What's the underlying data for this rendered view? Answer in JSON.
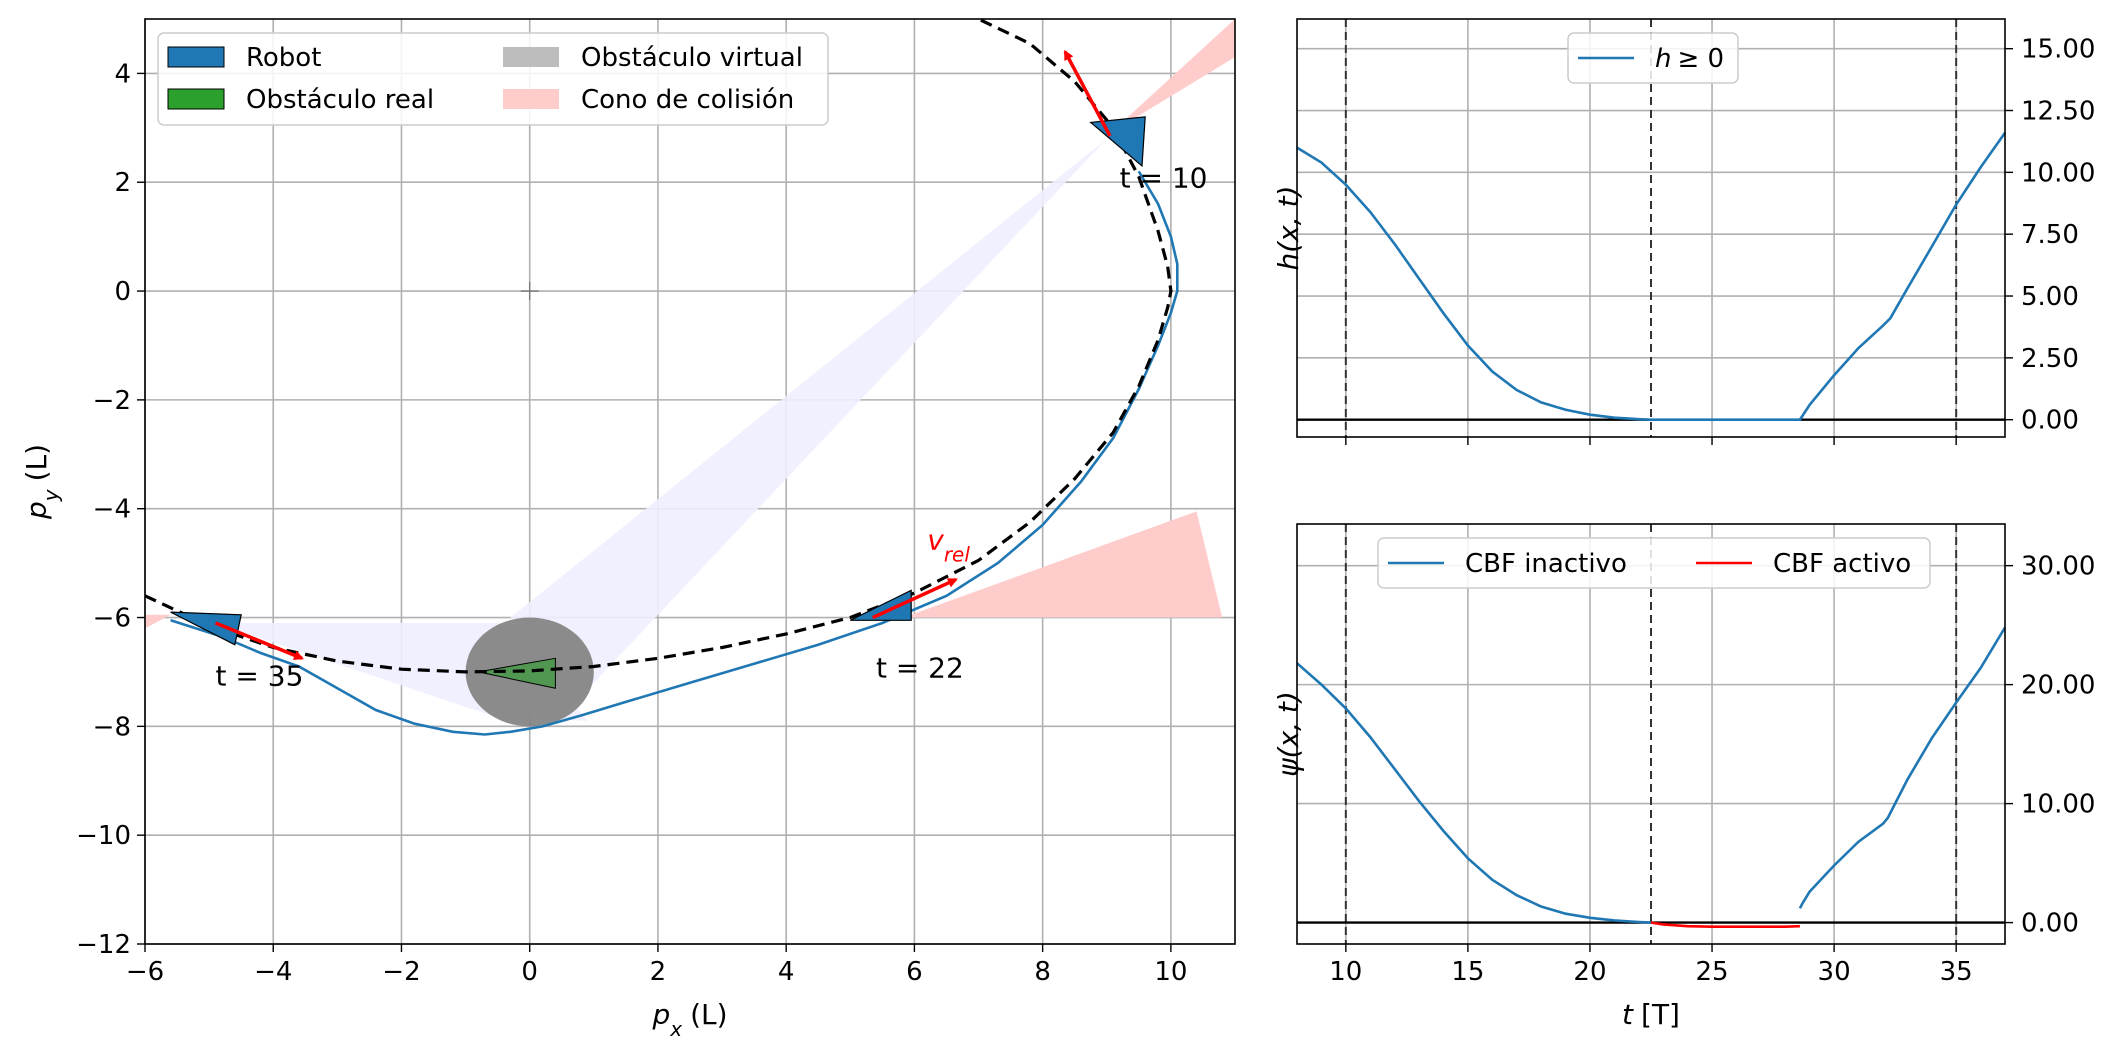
{
  "chart_data": [
    {
      "type": "line",
      "title": "",
      "xlabel_main": "p",
      "xlabel_sub": "x",
      "xlabel_unit": "(L)",
      "ylabel_main": "p",
      "ylabel_sub": "y",
      "ylabel_unit": "(L)",
      "xlim": [
        -6,
        11
      ],
      "ylim": [
        -12,
        5
      ],
      "xticks": [
        -6,
        -4,
        -2,
        0,
        2,
        4,
        6,
        8,
        10
      ],
      "yticks": [
        -12,
        -10,
        -8,
        -6,
        -4,
        -2,
        0,
        2,
        4
      ],
      "grid": true,
      "legend": {
        "placement": "upper-left",
        "entries": [
          {
            "label": "Robot",
            "color": "#1f77b4"
          },
          {
            "label": "Obstáculo virtual",
            "color": "#bdbdbd"
          },
          {
            "label": "Obstáculo real",
            "color": "#2ca02c"
          },
          {
            "label": "Cono de colisión",
            "color": "#ffcccc"
          }
        ]
      },
      "series": [
        {
          "label": "robot trajectory",
          "color": "#1f77b4",
          "style": "solid",
          "x": [
            -5.6,
            -4.8,
            -4.2,
            -3.6,
            -3.0,
            -2.4,
            -1.8,
            -1.2,
            -0.7,
            -0.3,
            0.2,
            0.8,
            1.5,
            2.5,
            3.5,
            4.5,
            5.5,
            6.5,
            7.3,
            8.0,
            8.6,
            9.1,
            9.5,
            9.8,
            10.0,
            10.1,
            10.1,
            10.0,
            9.8,
            9.5
          ],
          "y": [
            -6.05,
            -6.35,
            -6.65,
            -6.9,
            -7.3,
            -7.7,
            -7.95,
            -8.1,
            -8.15,
            -8.1,
            -8.0,
            -7.8,
            -7.55,
            -7.2,
            -6.85,
            -6.5,
            -6.1,
            -5.6,
            -5.0,
            -4.3,
            -3.5,
            -2.7,
            -1.8,
            -1.0,
            -0.4,
            0.0,
            0.5,
            1.0,
            1.6,
            2.2
          ]
        },
        {
          "label": "reference path",
          "color": "#000000",
          "style": "dashed",
          "x": [
            -6.0,
            -5.0,
            -4.0,
            -3.0,
            -2.0,
            -1.0,
            0.0,
            1.0,
            2.0,
            3.0,
            4.0,
            5.0,
            6.0,
            7.0,
            7.8,
            8.5,
            9.1,
            9.5,
            9.8,
            9.95,
            10.0,
            9.95,
            9.8,
            9.5,
            9.1,
            8.5,
            7.8,
            7.0
          ],
          "y": [
            -5.6,
            -6.15,
            -6.55,
            -6.8,
            -6.95,
            -7.0,
            -6.98,
            -6.9,
            -6.75,
            -6.55,
            -6.3,
            -6.0,
            -5.55,
            -4.95,
            -4.25,
            -3.45,
            -2.6,
            -1.75,
            -0.9,
            -0.3,
            0.0,
            0.45,
            1.1,
            2.1,
            3.0,
            3.85,
            4.55,
            5.0
          ]
        }
      ],
      "obstacle": {
        "center": [
          0,
          -7
        ],
        "radius": 1.0,
        "label": "Obstáculo virtual"
      },
      "real_obstacle": {
        "points": [
          [
            -0.8,
            -7.0
          ],
          [
            0.4,
            -6.75
          ],
          [
            0.4,
            -7.3
          ]
        ],
        "label": "Obstáculo real"
      },
      "robots": [
        {
          "t_label": "t = 10",
          "tip": [
            9.55,
            2.3
          ],
          "back": [
            8.75,
            3.1
          ],
          "side": [
            9.6,
            3.2
          ],
          "label_at": [
            9.2,
            1.9
          ],
          "arrow_from": [
            9.05,
            2.85
          ],
          "arrow_to": [
            8.35,
            4.4
          ]
        },
        {
          "t_label": "t = 22",
          "tip": [
            5.0,
            -6.05
          ],
          "back": [
            5.95,
            -6.05
          ],
          "side": [
            5.95,
            -5.5
          ],
          "label_at": [
            5.4,
            -7.1
          ],
          "arrow_from": [
            5.35,
            -6.0
          ],
          "arrow_to": [
            6.65,
            -5.3
          ]
        },
        {
          "t_label": "t = 35",
          "tip": [
            -5.6,
            -5.9
          ],
          "back": [
            -4.6,
            -6.5
          ],
          "side": [
            -4.5,
            -5.95
          ],
          "label_at": [
            -4.9,
            -7.25
          ],
          "arrow_from": [
            -4.9,
            -6.1
          ],
          "arrow_to": [
            -3.55,
            -6.75
          ]
        }
      ],
      "cones": [
        {
          "color": "#ffcccc",
          "points": [
            [
              9.05,
              2.9
            ],
            [
              11.0,
              4.3
            ],
            [
              11.0,
              5.0
            ]
          ]
        },
        {
          "color": "#ffcccc",
          "points": [
            [
              5.95,
              -5.95
            ],
            [
              10.4,
              -4.05
            ],
            [
              10.8,
              -6.0
            ],
            [
              5.95,
              -6.0
            ]
          ]
        },
        {
          "color": "#ffcccc",
          "points": [
            [
              -6.0,
              -5.95
            ],
            [
              -5.6,
              -5.95
            ],
            [
              -6.0,
              -6.2
            ]
          ]
        },
        {
          "color": "#eeeeff",
          "points": [
            [
              9.0,
              2.8
            ],
            [
              -0.3,
              -6.0
            ],
            [
              0.6,
              -7.7
            ]
          ]
        },
        {
          "color": "#eeeeff",
          "points": [
            [
              -4.9,
              -6.1
            ],
            [
              -0.3,
              -6.1
            ],
            [
              0.9,
              -7.9
            ],
            [
              -0.6,
              -7.8
            ]
          ]
        }
      ],
      "annotation": {
        "text_main": "v",
        "text_sub": "rel",
        "x": 6.2,
        "y": -4.75,
        "color": "#ff0000"
      },
      "origin_marker": [
        0,
        0
      ]
    },
    {
      "type": "line",
      "xlabel": "",
      "ylabel": "h(x, t)",
      "xlim": [
        8,
        37
      ],
      "ylim": [
        -0.7,
        16.2
      ],
      "xticks": [
        10,
        15,
        20,
        25,
        30,
        35
      ],
      "yticks": [
        0.0,
        2.5,
        5.0,
        7.5,
        10.0,
        12.5,
        15.0
      ],
      "ytick_labels": [
        "0.00",
        "2.50",
        "5.00",
        "7.50",
        "10.00",
        "12.50",
        "15.00"
      ],
      "yaxis_side": "right",
      "grid": true,
      "vlines": [
        10,
        22.5,
        35
      ],
      "hline": 0,
      "legend": {
        "placement": "upper-center",
        "entries": [
          {
            "label": "h ≥ 0",
            "label_main": "h",
            "label_rest": "≥ 0",
            "color": "#1f77b4"
          }
        ]
      },
      "series": [
        {
          "name": "h ≥ 0",
          "color": "#1f77b4",
          "x": [
            8,
            9,
            10,
            11,
            12,
            13,
            14,
            15,
            16,
            17,
            18,
            19,
            20,
            21,
            22,
            22.5,
            23,
            24,
            25,
            26,
            27,
            28,
            28.6,
            29,
            30,
            31,
            32,
            32.3,
            33,
            34,
            35,
            36,
            37
          ],
          "y": [
            11.0,
            10.4,
            9.5,
            8.4,
            7.1,
            5.7,
            4.3,
            3.0,
            1.95,
            1.2,
            0.7,
            0.4,
            0.2,
            0.08,
            0.02,
            0.0,
            0.0,
            0.0,
            0.0,
            0.0,
            0.0,
            0.0,
            0.0,
            0.6,
            1.8,
            2.9,
            3.8,
            4.1,
            5.3,
            7.0,
            8.7,
            10.2,
            11.6
          ]
        }
      ]
    },
    {
      "type": "line",
      "xlabel_main": "t",
      "xlabel_unit": "[T]",
      "ylabel": "ψ(x, t)",
      "xlim": [
        8,
        37
      ],
      "ylim": [
        -1.8,
        33.5
      ],
      "xticks": [
        10,
        15,
        20,
        25,
        30,
        35
      ],
      "xtick_labels": [
        "10",
        "15",
        "20",
        "25",
        "30",
        "35"
      ],
      "yticks": [
        0.0,
        10.0,
        20.0,
        30.0
      ],
      "ytick_labels": [
        "0.00",
        "10.00",
        "20.00",
        "30.00"
      ],
      "yaxis_side": "right",
      "grid": true,
      "vlines": [
        10,
        22.5,
        35
      ],
      "hline": 0,
      "legend": {
        "placement": "upper-center",
        "entries": [
          {
            "label": "CBF inactivo",
            "color": "#1f77b4"
          },
          {
            "label": "CBF activo",
            "color": "#ff0000"
          }
        ]
      },
      "series": [
        {
          "name": "CBF inactivo",
          "color": "#1f77b4",
          "x": [
            8,
            9,
            10,
            11,
            12,
            13,
            14,
            15,
            16,
            17,
            18,
            19,
            20,
            21,
            22,
            22.5
          ],
          "y": [
            21.8,
            20.0,
            18.0,
            15.6,
            12.9,
            10.2,
            7.7,
            5.4,
            3.6,
            2.3,
            1.35,
            0.75,
            0.4,
            0.18,
            0.05,
            0.0
          ]
        },
        {
          "name": "CBF activo",
          "color": "#ff0000",
          "x": [
            22.5,
            23,
            24,
            25,
            26,
            27,
            28,
            28.6
          ],
          "y": [
            0.0,
            -0.15,
            -0.3,
            -0.35,
            -0.35,
            -0.35,
            -0.35,
            -0.3
          ]
        },
        {
          "name": "CBF inactivo (2)",
          "color": "#1f77b4",
          "x": [
            28.6,
            28.7,
            29,
            30,
            31,
            32,
            32.2,
            33,
            34,
            35,
            36,
            37
          ],
          "y": [
            1.2,
            1.6,
            2.6,
            4.8,
            6.8,
            8.3,
            8.8,
            12.0,
            15.5,
            18.5,
            21.4,
            24.8
          ]
        }
      ]
    }
  ]
}
